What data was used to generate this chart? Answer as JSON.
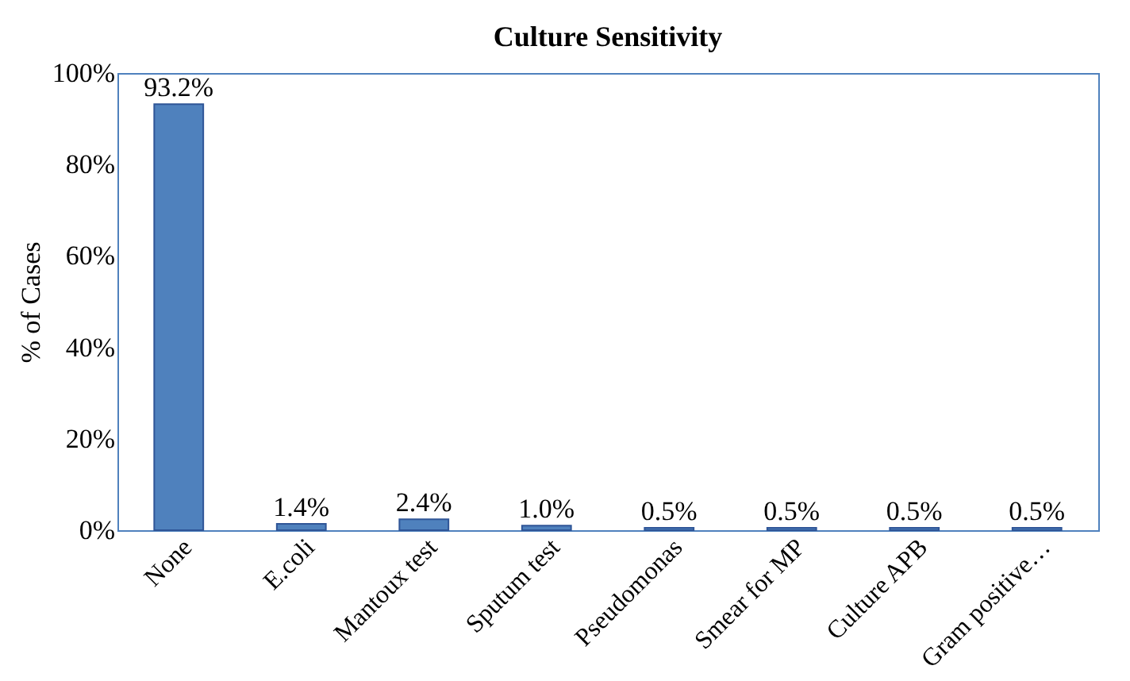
{
  "chart_data": {
    "type": "bar",
    "title": "Culture Sensitivity",
    "ylabel": "% of Cases",
    "categories": [
      "None",
      "E.coli",
      "Mantoux test",
      "Sputum test",
      "Pseudomonas",
      "Smear for MP",
      "Culture APB",
      "Gram positive…"
    ],
    "values": [
      93.2,
      1.4,
      2.4,
      1.0,
      0.5,
      0.5,
      0.5,
      0.5
    ],
    "value_labels": [
      "93.2%",
      "1.4%",
      "2.4%",
      "1.0%",
      "0.5%",
      "0.5%",
      "0.5%",
      "0.5%"
    ],
    "color": "#4f81bd",
    "ylim": [
      0,
      100
    ],
    "yticks": [
      {
        "value": 0,
        "label": "0%"
      },
      {
        "value": 20,
        "label": "20%"
      },
      {
        "value": 40,
        "label": "40%"
      },
      {
        "value": 60,
        "label": "60%"
      },
      {
        "value": 80,
        "label": "80%"
      },
      {
        "value": 100,
        "label": "100%"
      }
    ],
    "grid": false,
    "legend": false
  }
}
